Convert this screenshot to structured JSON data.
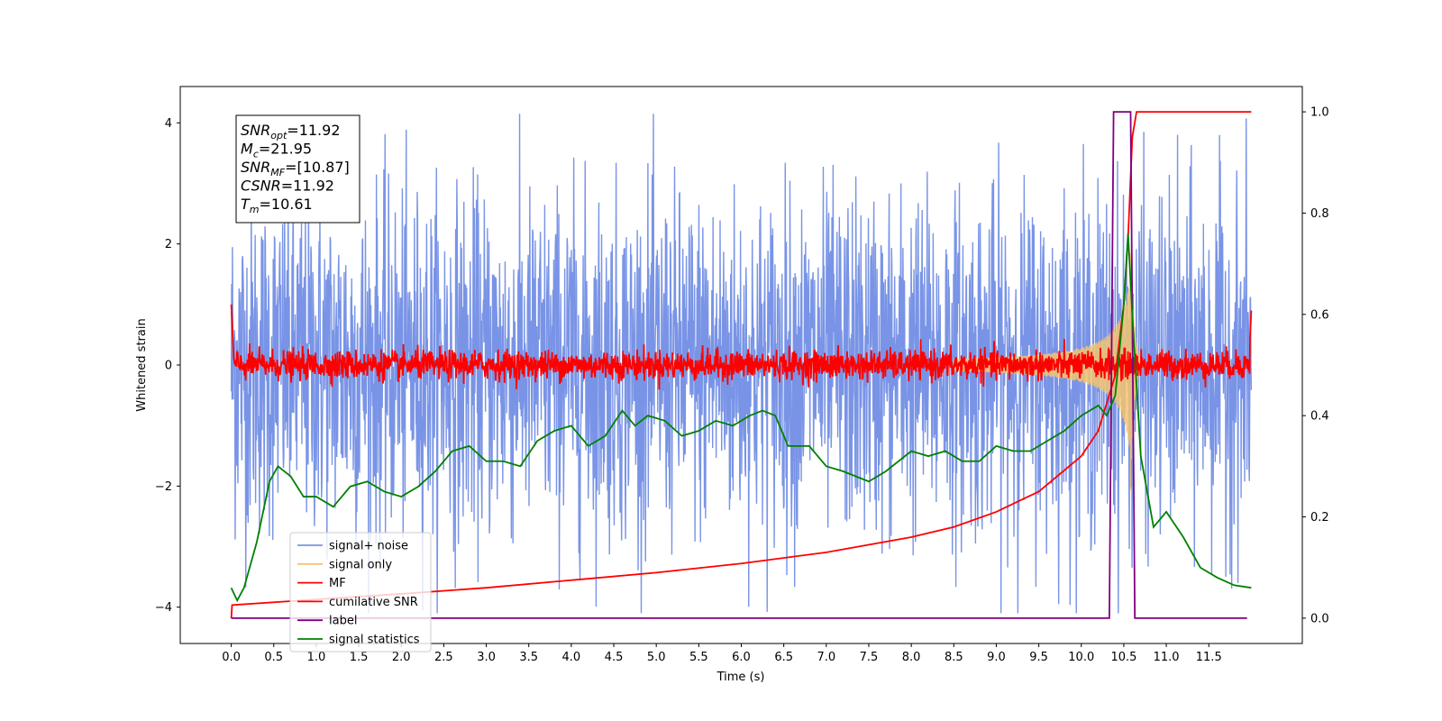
{
  "chart_data": {
    "type": "line",
    "title": "",
    "xlabel": "Time (s)",
    "ylabel": "Whitened strain",
    "xlim": [
      -0.6,
      12.6
    ],
    "ylim": [
      -4.6,
      4.6
    ],
    "y2lim": [
      -0.05,
      1.05
    ],
    "grid": false,
    "legend_position": "lower-left",
    "x_ticks": [
      "0.0",
      "0.5",
      "1.0",
      "1.5",
      "2.0",
      "2.5",
      "3.0",
      "3.5",
      "4.0",
      "4.5",
      "5.0",
      "5.5",
      "6.0",
      "6.5",
      "7.0",
      "7.5",
      "8.0",
      "8.5",
      "9.0",
      "9.5",
      "10.0",
      "10.5",
      "11.0",
      "11.5"
    ],
    "y_ticks": [
      "-4",
      "-2",
      "0",
      "2",
      "4"
    ],
    "y2_ticks": [
      "0.0",
      "0.2",
      "0.4",
      "0.6",
      "0.8",
      "1.0"
    ],
    "info_box": [
      {
        "base": "SNR",
        "sub": "opt",
        "value": "=11.92"
      },
      {
        "base": "M",
        "sub": "c",
        "value": "=21.95"
      },
      {
        "base": "SNR",
        "sub": "MF",
        "value": "=[10.87]"
      },
      {
        "base": "CSNR",
        "sub": "",
        "value": "=11.92"
      },
      {
        "base": "T",
        "sub": "m",
        "value": "=10.61"
      }
    ],
    "series": [
      {
        "name": "signal+ noise",
        "color": "#7994e6",
        "axis": "left",
        "kind": "noise",
        "center": 0,
        "spread": 1.4,
        "x_range": [
          0,
          12
        ]
      },
      {
        "name": "signal only",
        "color": "#f5c470",
        "axis": "left",
        "kind": "chirp",
        "merger_time": 10.58,
        "peak_amplitude": 2.1
      },
      {
        "name": "MF",
        "color": "#ff0000",
        "axis": "left",
        "kind": "mf",
        "center": 0,
        "spread": 0.12,
        "x_range": [
          0,
          12
        ]
      },
      {
        "name": "cumilative SNR",
        "color": "#ff0000",
        "axis": "right",
        "x": [
          0.0,
          0.01,
          1.0,
          2.0,
          3.0,
          4.0,
          5.0,
          6.0,
          7.0,
          8.0,
          8.5,
          9.0,
          9.5,
          10.0,
          10.2,
          10.4,
          10.5,
          10.55,
          10.6,
          10.65,
          12.0
        ],
        "y": [
          0.0,
          0.026,
          0.037,
          0.048,
          0.06,
          0.075,
          0.09,
          0.108,
          0.13,
          0.16,
          0.18,
          0.21,
          0.25,
          0.32,
          0.37,
          0.48,
          0.62,
          0.75,
          0.95,
          1.0,
          1.0
        ]
      },
      {
        "name": "label",
        "color": "#800080",
        "axis": "right",
        "x": [
          0.0,
          10.33,
          10.38,
          10.58,
          10.63,
          11.95
        ],
        "y": [
          0.0,
          0.0,
          1.0,
          1.0,
          0.0,
          0.0
        ]
      },
      {
        "name": "signal statistics",
        "color": "#008000",
        "axis": "right",
        "x": [
          0.0,
          0.07,
          0.15,
          0.3,
          0.45,
          0.55,
          0.7,
          0.85,
          1.0,
          1.2,
          1.4,
          1.6,
          1.8,
          2.0,
          2.2,
          2.4,
          2.6,
          2.8,
          3.0,
          3.2,
          3.4,
          3.6,
          3.8,
          4.0,
          4.2,
          4.4,
          4.6,
          4.75,
          4.9,
          5.1,
          5.3,
          5.5,
          5.7,
          5.9,
          6.1,
          6.25,
          6.4,
          6.55,
          6.8,
          7.0,
          7.2,
          7.5,
          7.7,
          8.0,
          8.2,
          8.4,
          8.6,
          8.8,
          9.0,
          9.2,
          9.4,
          9.6,
          9.8,
          10.0,
          10.2,
          10.3,
          10.4,
          10.5,
          10.55,
          10.6,
          10.7,
          10.85,
          11.0,
          11.2,
          11.4,
          11.6,
          11.8,
          12.0
        ],
        "y": [
          0.06,
          0.035,
          0.06,
          0.15,
          0.27,
          0.3,
          0.28,
          0.24,
          0.24,
          0.22,
          0.26,
          0.27,
          0.25,
          0.24,
          0.26,
          0.29,
          0.33,
          0.34,
          0.31,
          0.31,
          0.3,
          0.35,
          0.37,
          0.38,
          0.34,
          0.36,
          0.41,
          0.38,
          0.4,
          0.39,
          0.36,
          0.37,
          0.39,
          0.38,
          0.4,
          0.41,
          0.4,
          0.34,
          0.34,
          0.3,
          0.29,
          0.27,
          0.29,
          0.33,
          0.32,
          0.33,
          0.31,
          0.31,
          0.34,
          0.33,
          0.33,
          0.35,
          0.37,
          0.4,
          0.42,
          0.4,
          0.44,
          0.62,
          0.76,
          0.6,
          0.32,
          0.18,
          0.21,
          0.16,
          0.1,
          0.08,
          0.065,
          0.06
        ]
      }
    ]
  }
}
